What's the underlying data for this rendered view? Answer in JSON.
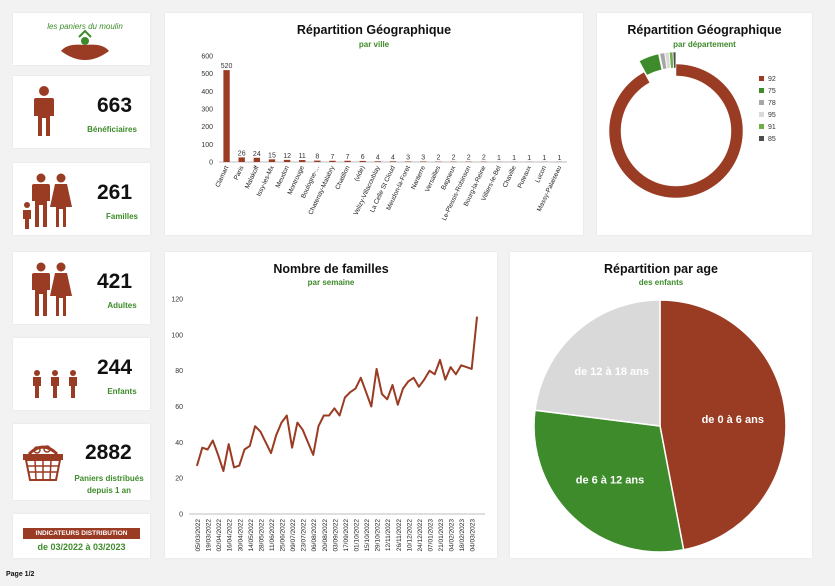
{
  "logo": {
    "text": "les paniers du moulin"
  },
  "kpis": {
    "beneficiaires": {
      "value": "663",
      "label": "Bénéficiaires"
    },
    "familles": {
      "value": "261",
      "label": "Familles"
    },
    "adultes": {
      "value": "421",
      "label": "Adultes"
    },
    "enfants": {
      "value": "244",
      "label": "Enfants"
    },
    "paniers": {
      "value": "2882",
      "label1": "Paniers distribués",
      "label2": "depuis 1 an"
    }
  },
  "indicator": {
    "badge": "INDICATEURS DISTRIBUTION",
    "period": "de 03/2022 à 03/2023"
  },
  "footer": {
    "page": "Page 1/2"
  },
  "colors": {
    "brown": "#9a3b23",
    "green": "#3d8b2a",
    "lightgray": "#d9d9d9"
  },
  "chart_data": [
    {
      "id": "ville",
      "type": "bar",
      "title": "Répartition Géographique",
      "subtitle": "par ville",
      "categories": [
        "Clamart",
        "Paris",
        "Malakoff",
        "Issy-les-Mx",
        "Meudon",
        "Montrouge",
        "Boulogne-...",
        "Chatenay-Malabry",
        "Chatillon",
        "(vide)",
        "Velizy-Villacoublay",
        "La Celle St Cloud",
        "Meudon-la-Foret",
        "Nanterre",
        "Versailles",
        "Bagneux",
        "Le-Plessis-Robinson",
        "Bourg-la-Reine",
        "Villiers-le-Bel",
        "Chaville",
        "Puteaux",
        "Lucon",
        "Massy-Palaiseau"
      ],
      "values": [
        520,
        26,
        24,
        15,
        12,
        11,
        8,
        7,
        7,
        6,
        4,
        4,
        3,
        3,
        2,
        2,
        2,
        2,
        1,
        1,
        1,
        1,
        1
      ],
      "ylim": [
        0,
        600
      ],
      "yticks": [
        0,
        100,
        200,
        300,
        400,
        500,
        600
      ]
    },
    {
      "id": "departement",
      "type": "pie",
      "title": "Répartition Géographique",
      "subtitle": "par département",
      "legend_position": "right",
      "labels": [
        "92",
        "75",
        "78",
        "95",
        "91",
        "85"
      ],
      "values": [
        605,
        30,
        7,
        6,
        5,
        4
      ],
      "colors": [
        "#9a3b23",
        "#3d8b2a",
        "#a6a6a6",
        "#d9d9d9",
        "#70ad47",
        "#4d4d4d"
      ]
    },
    {
      "id": "familles",
      "type": "line",
      "title": "Nombre de familles",
      "subtitle": "par semaine",
      "x": [
        "05/03/2022",
        "12/03/2022",
        "19/03/2022",
        "26/03/2022",
        "02/04/2022",
        "09/04/2022",
        "16/04/2022",
        "23/04/2022",
        "30/04/2022",
        "07/05/2022",
        "14/05/2022",
        "21/05/2022",
        "28/05/2022",
        "04/06/2022",
        "11/06/2022",
        "18/06/2022",
        "25/06/2022",
        "02/07/2022",
        "09/07/2022",
        "16/07/2022",
        "23/07/2022",
        "30/07/2022",
        "06/08/2022",
        "13/08/2022",
        "20/08/2022",
        "27/08/2022",
        "03/09/2022",
        "10/09/2022",
        "17/09/2022",
        "24/09/2022",
        "01/10/2022",
        "08/10/2022",
        "15/10/2022",
        "22/10/2022",
        "29/10/2022",
        "05/11/2022",
        "12/11/2022",
        "19/11/2022",
        "26/11/2022",
        "03/12/2022",
        "10/12/2022",
        "17/12/2022",
        "24/12/2022",
        "31/12/2022",
        "07/01/2023",
        "14/01/2023",
        "21/01/2023",
        "28/01/2023",
        "04/02/2023",
        "11/02/2023",
        "18/02/2023",
        "25/02/2023",
        "04/03/2023",
        "11/03/2023"
      ],
      "xtick_labels": [
        "05/03/2022",
        "19/03/2022",
        "02/04/2022",
        "16/04/2022",
        "30/04/2022",
        "14/05/2022",
        "28/05/2022",
        "11/06/2022",
        "25/06/2022",
        "09/07/2022",
        "23/07/2022",
        "06/08/2022",
        "20/08/2022",
        "03/09/2022",
        "17/09/2022",
        "01/10/2022",
        "15/10/2022",
        "29/10/2022",
        "12/11/2022",
        "26/11/2022",
        "10/12/2022",
        "24/12/2022",
        "07/01/2023",
        "21/01/2023",
        "04/02/2023",
        "18/02/2023",
        "04/03/2023"
      ],
      "values": [
        27,
        37,
        36,
        41,
        33,
        24,
        39,
        26,
        27,
        36,
        38,
        49,
        46,
        40,
        34,
        44,
        51,
        55,
        37,
        51,
        47,
        40,
        33,
        49,
        55,
        55,
        59,
        55,
        65,
        68,
        70,
        76,
        68,
        60,
        81,
        67,
        64,
        72,
        61,
        70,
        74,
        76,
        71,
        75,
        80,
        78,
        86,
        75,
        82,
        78,
        83,
        82,
        81,
        110
      ],
      "ylim": [
        0,
        120
      ],
      "yticks": [
        0,
        20,
        40,
        60,
        80,
        100,
        120
      ]
    },
    {
      "id": "age",
      "type": "pie",
      "title": "Répartition par age",
      "subtitle": "des enfants",
      "labels": [
        "de 0 à 6 ans",
        "de 6 à 12 ans",
        "de 12 à 18 ans"
      ],
      "values": [
        47,
        30,
        23
      ],
      "colors": [
        "#9a3b23",
        "#3d8b2a",
        "#d9d9d9"
      ]
    }
  ]
}
